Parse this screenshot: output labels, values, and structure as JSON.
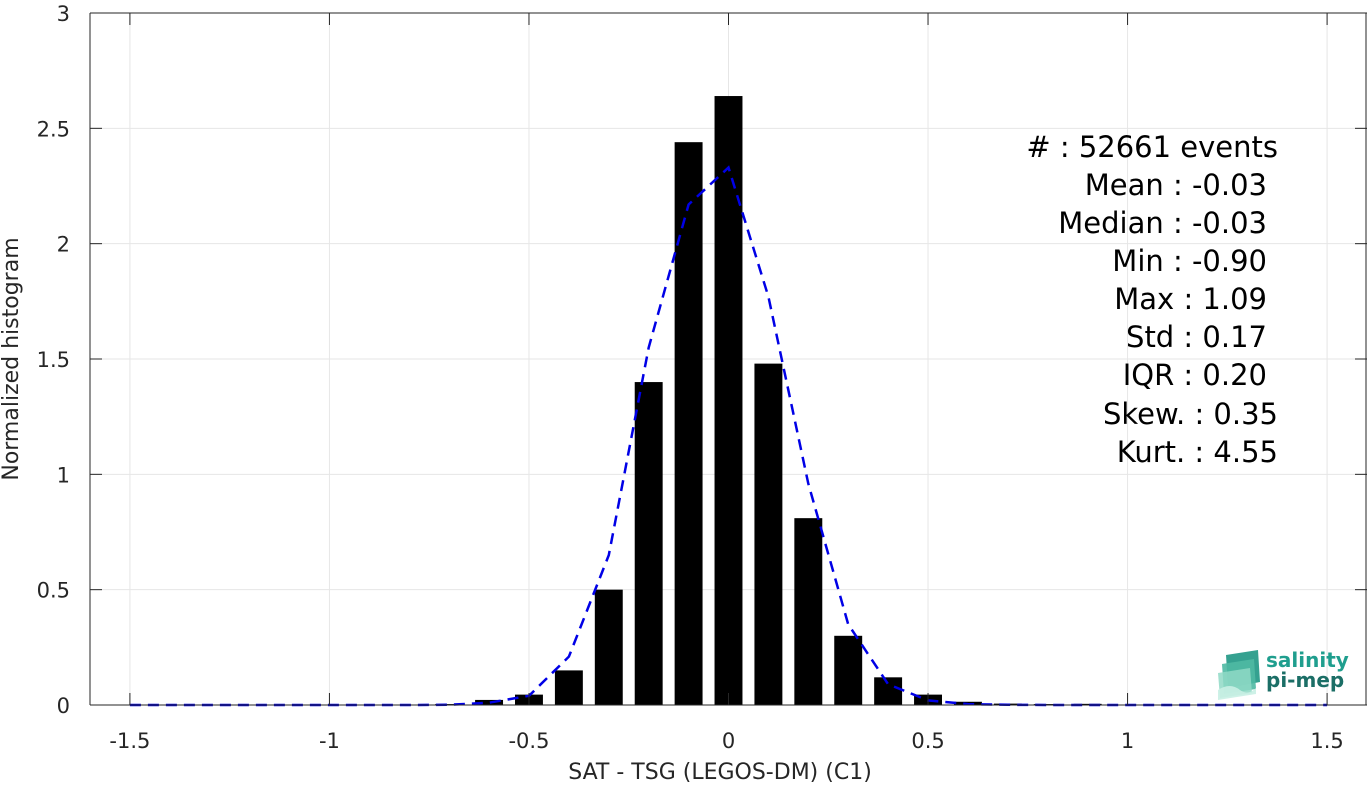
{
  "chart_data": {
    "type": "bar",
    "xlabel": "SAT - TSG (LEGOS-DM) (C1)",
    "ylabel": "Normalized histogram",
    "xlim": [
      -1.6,
      1.6
    ],
    "ylim": [
      0,
      3
    ],
    "xticks": [
      -1.5,
      -1,
      -0.5,
      0,
      0.5,
      1,
      1.5
    ],
    "xtick_labels": [
      "-1.5",
      "-1",
      "-0.5",
      "0",
      "0.5",
      "1",
      "1.5"
    ],
    "yticks": [
      0,
      0.5,
      1,
      1.5,
      2,
      2.5,
      3
    ],
    "ytick_labels": [
      "0",
      "0.5",
      "1",
      "1.5",
      "2",
      "2.5",
      "3"
    ],
    "grid": true,
    "bar_width": 0.07,
    "histogram": {
      "color": "#000000",
      "x": [
        -1.5,
        -1.4,
        -1.3,
        -1.2,
        -1.1,
        -1.0,
        -0.9,
        -0.8,
        -0.7,
        -0.6,
        -0.5,
        -0.4,
        -0.3,
        -0.2,
        -0.1,
        0.0,
        0.1,
        0.2,
        0.3,
        0.4,
        0.5,
        0.6,
        0.7,
        0.8,
        0.9,
        1.0,
        1.1,
        1.2,
        1.3,
        1.4,
        1.5
      ],
      "values": [
        0,
        0,
        0,
        0,
        0,
        0,
        0.001,
        0.002,
        0.004,
        0.022,
        0.045,
        0.15,
        0.5,
        1.4,
        2.44,
        2.64,
        1.48,
        0.81,
        0.3,
        0.12,
        0.045,
        0.014,
        0.006,
        0.004,
        0.005,
        0.002,
        0.001,
        0,
        0,
        0,
        0
      ]
    },
    "fit": {
      "style": "dashed",
      "color": "#0000e6",
      "x": [
        -1.5,
        -1.4,
        -1.3,
        -1.2,
        -1.1,
        -1.0,
        -0.9,
        -0.8,
        -0.7,
        -0.6,
        -0.5,
        -0.4,
        -0.3,
        -0.2,
        -0.1,
        0.0,
        0.1,
        0.2,
        0.3,
        0.4,
        0.5,
        0.6,
        0.7,
        0.8,
        0.9,
        1.0,
        1.1,
        1.2,
        1.3,
        1.4,
        1.5
      ],
      "y": [
        0,
        0,
        0,
        0,
        0,
        0,
        0,
        0,
        0.001,
        0.01,
        0.04,
        0.21,
        0.65,
        1.55,
        2.17,
        2.33,
        1.77,
        0.96,
        0.35,
        0.09,
        0.02,
        0.004,
        0.001,
        0,
        0,
        0,
        0,
        0,
        0,
        0,
        0
      ]
    }
  },
  "stats": {
    "events": "#  : 52661 events",
    "mean": "Mean : -0.03",
    "median": "Median : -0.03",
    "min": "Min : -0.90",
    "max": "Max : 1.09",
    "std": "Std : 0.17",
    "iqr": "IQR : 0.20",
    "skew": "Skew. : 0.35",
    "kurt": "Kurt. : 4.55"
  },
  "logo": {
    "line1": "salinity",
    "line2": "pi-mep",
    "color": "#1f9e8e"
  }
}
